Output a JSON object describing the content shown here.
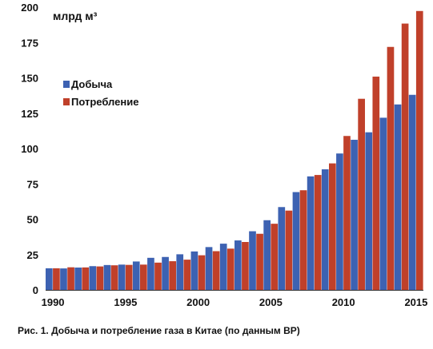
{
  "caption": "Рис. 1. Добыча и потребление газа в Китае (по данным BP)",
  "chart_data": {
    "type": "bar",
    "unit_label": "млрд м³",
    "x": [
      1990,
      1991,
      1992,
      1993,
      1994,
      1995,
      1996,
      1997,
      1998,
      1999,
      2000,
      2001,
      2002,
      2003,
      2004,
      2005,
      2006,
      2007,
      2008,
      2009,
      2010,
      2011,
      2012,
      2013,
      2014,
      2015
    ],
    "x_tick_labels": [
      "1990",
      "1995",
      "2000",
      "2005",
      "2010",
      "2015"
    ],
    "y_ticks": [
      0,
      25,
      50,
      75,
      100,
      125,
      150,
      175,
      200
    ],
    "ylim": [
      0,
      200
    ],
    "grid": false,
    "legend_position": "top-left",
    "series": [
      {
        "name": "Добыча",
        "color": "#3d62b2",
        "values": [
          15.3,
          15.2,
          15.8,
          16.8,
          17.6,
          17.9,
          20.1,
          22.7,
          23.3,
          25.2,
          27.2,
          30.3,
          32.7,
          35.0,
          41.5,
          49.3,
          58.6,
          69.2,
          80.3,
          85.3,
          96.5,
          106.2,
          111.5,
          121.8,
          131.2,
          138.0
        ]
      },
      {
        "name": "Потребление",
        "color": "#c0402a",
        "values": [
          15.3,
          16.0,
          15.9,
          16.6,
          17.4,
          17.7,
          17.9,
          19.3,
          20.3,
          21.4,
          24.5,
          27.4,
          29.2,
          33.9,
          39.7,
          46.8,
          56.1,
          70.5,
          81.3,
          89.5,
          108.9,
          135.2,
          150.9,
          171.9,
          188.4,
          197.3
        ]
      }
    ]
  }
}
